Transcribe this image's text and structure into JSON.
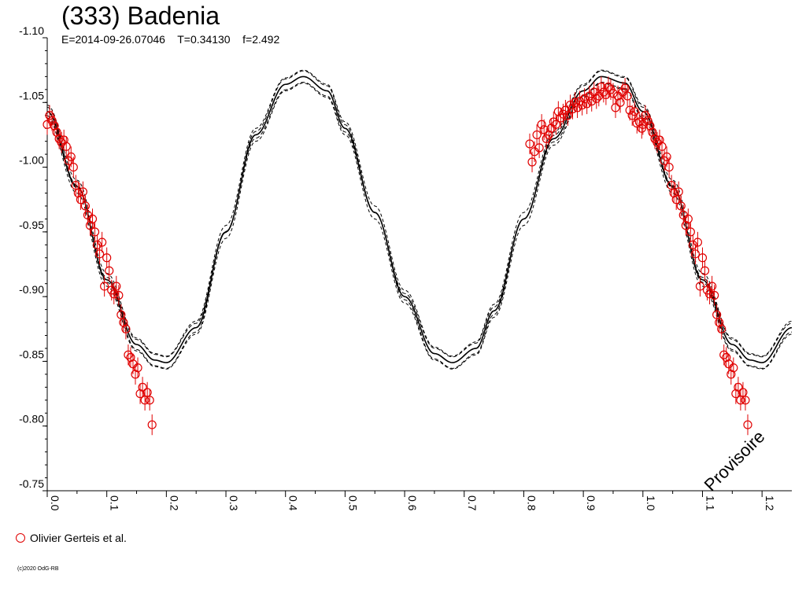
{
  "title": "(333) Badenia",
  "subtitle": "E=2014-09-26.07046    T=0.34130    f=2.492",
  "legend": {
    "label": "Olivier Gerteis et al.",
    "color": "#e00000"
  },
  "watermark": "Provisoire",
  "copyright": "(c)2020 OdG-RB",
  "chart_data": {
    "type": "scatter",
    "title": "(333) Badenia",
    "subtitle": "E=2014-09-26.07046    T=0.34130    f=2.492",
    "xlim": [
      0,
      1.25
    ],
    "ylim": [
      -1.1,
      -0.75
    ],
    "y_inverted": true,
    "x_ticks": [
      "0.0",
      "0.1",
      "0.2",
      "0.3",
      "0.4",
      "0.5",
      "0.6",
      "0.7",
      "0.8",
      "0.9",
      "1.0",
      "1.1",
      "1.2"
    ],
    "y_ticks": [
      "-1.10",
      "-1.05",
      "-1.00",
      "-0.95",
      "-0.90",
      "-0.85",
      "-0.80",
      "-0.75"
    ],
    "grid": false,
    "legend_position": "bottom-left",
    "fit_curve": {
      "description": "two-harmonic fit with dashed uncertainty envelope",
      "points": [
        [
          0.0,
          -1.043
        ],
        [
          0.05,
          -0.985
        ],
        [
          0.1,
          -0.913
        ],
        [
          0.15,
          -0.863
        ],
        [
          0.18,
          -0.851
        ],
        [
          0.2,
          -0.849
        ],
        [
          0.25,
          -0.876
        ],
        [
          0.3,
          -0.95
        ],
        [
          0.35,
          -1.025
        ],
        [
          0.4,
          -1.064
        ],
        [
          0.43,
          -1.07
        ],
        [
          0.47,
          -1.059
        ],
        [
          0.5,
          -1.03
        ],
        [
          0.55,
          -0.965
        ],
        [
          0.6,
          -0.9
        ],
        [
          0.65,
          -0.856
        ],
        [
          0.68,
          -0.849
        ],
        [
          0.72,
          -0.86
        ],
        [
          0.75,
          -0.889
        ],
        [
          0.8,
          -0.96
        ],
        [
          0.85,
          -1.022
        ],
        [
          0.9,
          -1.059
        ],
        [
          0.93,
          -1.07
        ],
        [
          0.97,
          -1.065
        ],
        [
          1.0,
          -1.043
        ],
        [
          1.05,
          -0.985
        ],
        [
          1.1,
          -0.913
        ],
        [
          1.15,
          -0.863
        ],
        [
          1.18,
          -0.851
        ],
        [
          1.2,
          -0.849
        ],
        [
          1.25,
          -0.876
        ]
      ],
      "envelope": 0.005
    },
    "series": [
      {
        "name": "Olivier Gerteis et al.",
        "color": "#e00000",
        "error": 0.008,
        "points": [
          [
            0.0,
            -1.033
          ],
          [
            0.004,
            -1.04
          ],
          [
            0.008,
            -1.036
          ],
          [
            0.012,
            -1.032
          ],
          [
            0.016,
            -1.027
          ],
          [
            0.02,
            -1.022
          ],
          [
            0.024,
            -1.019
          ],
          [
            0.028,
            -1.021
          ],
          [
            0.032,
            -1.016
          ],
          [
            0.036,
            -1.005
          ],
          [
            0.04,
            -1.008
          ],
          [
            0.044,
            -1.0
          ],
          [
            0.048,
            -0.986
          ],
          [
            0.052,
            -0.98
          ],
          [
            0.056,
            -0.975
          ],
          [
            0.06,
            -0.981
          ],
          [
            0.064,
            -0.97
          ],
          [
            0.068,
            -0.963
          ],
          [
            0.072,
            -0.955
          ],
          [
            0.076,
            -0.96
          ],
          [
            0.08,
            -0.95
          ],
          [
            0.084,
            -0.94
          ],
          [
            0.088,
            -0.933
          ],
          [
            0.092,
            -0.942
          ],
          [
            0.096,
            -0.908
          ],
          [
            0.1,
            -0.93
          ],
          [
            0.104,
            -0.92
          ],
          [
            0.108,
            -0.905
          ],
          [
            0.112,
            -0.902
          ],
          [
            0.116,
            -0.908
          ],
          [
            0.12,
            -0.901
          ],
          [
            0.124,
            -0.886
          ],
          [
            0.128,
            -0.88
          ],
          [
            0.132,
            -0.875
          ],
          [
            0.136,
            -0.855
          ],
          [
            0.14,
            -0.853
          ],
          [
            0.144,
            -0.848
          ],
          [
            0.148,
            -0.84
          ],
          [
            0.152,
            -0.845
          ],
          [
            0.156,
            -0.825
          ],
          [
            0.16,
            -0.83
          ],
          [
            0.164,
            -0.82
          ],
          [
            0.168,
            -0.826
          ],
          [
            0.172,
            -0.82
          ],
          [
            0.176,
            -0.801
          ],
          [
            0.81,
            -1.018
          ],
          [
            0.814,
            -1.004
          ],
          [
            0.818,
            -1.012
          ],
          [
            0.822,
            -1.025
          ],
          [
            0.826,
            -1.015
          ],
          [
            0.83,
            -1.033
          ],
          [
            0.834,
            -1.029
          ],
          [
            0.838,
            -1.022
          ],
          [
            0.842,
            -1.025
          ],
          [
            0.846,
            -1.03
          ],
          [
            0.85,
            -1.035
          ],
          [
            0.854,
            -1.033
          ],
          [
            0.858,
            -1.043
          ],
          [
            0.862,
            -1.038
          ],
          [
            0.866,
            -1.041
          ],
          [
            0.87,
            -1.044
          ],
          [
            0.874,
            -1.04
          ],
          [
            0.878,
            -1.048
          ],
          [
            0.882,
            -1.045
          ],
          [
            0.886,
            -1.05
          ],
          [
            0.89,
            -1.046
          ],
          [
            0.894,
            -1.051
          ],
          [
            0.898,
            -1.048
          ],
          [
            0.902,
            -1.053
          ],
          [
            0.906,
            -1.049
          ],
          [
            0.91,
            -1.055
          ],
          [
            0.914,
            -1.051
          ],
          [
            0.918,
            -1.058
          ],
          [
            0.922,
            -1.053
          ],
          [
            0.926,
            -1.055
          ],
          [
            0.93,
            -1.062
          ],
          [
            0.934,
            -1.058
          ],
          [
            0.938,
            -1.056
          ],
          [
            0.942,
            -1.062
          ],
          [
            0.946,
            -1.06
          ],
          [
            0.95,
            -1.057
          ],
          [
            0.954,
            -1.046
          ],
          [
            0.958,
            -1.055
          ],
          [
            0.962,
            -1.05
          ],
          [
            0.966,
            -1.058
          ],
          [
            0.97,
            -1.061
          ],
          [
            0.974,
            -1.055
          ],
          [
            0.978,
            -1.044
          ],
          [
            0.982,
            -1.04
          ],
          [
            0.986,
            -1.043
          ],
          [
            0.99,
            -1.034
          ],
          [
            0.994,
            -1.035
          ],
          [
            0.998,
            -1.03
          ],
          [
            1.0,
            -1.033
          ],
          [
            1.004,
            -1.04
          ],
          [
            1.008,
            -1.036
          ],
          [
            1.012,
            -1.032
          ],
          [
            1.016,
            -1.027
          ],
          [
            1.02,
            -1.022
          ],
          [
            1.024,
            -1.019
          ],
          [
            1.028,
            -1.021
          ],
          [
            1.032,
            -1.016
          ],
          [
            1.036,
            -1.005
          ],
          [
            1.04,
            -1.008
          ],
          [
            1.044,
            -1.0
          ],
          [
            1.048,
            -0.986
          ],
          [
            1.052,
            -0.98
          ],
          [
            1.056,
            -0.975
          ],
          [
            1.06,
            -0.981
          ],
          [
            1.064,
            -0.97
          ],
          [
            1.068,
            -0.963
          ],
          [
            1.072,
            -0.955
          ],
          [
            1.076,
            -0.96
          ],
          [
            1.08,
            -0.95
          ],
          [
            1.084,
            -0.94
          ],
          [
            1.088,
            -0.933
          ],
          [
            1.092,
            -0.942
          ],
          [
            1.096,
            -0.908
          ],
          [
            1.1,
            -0.93
          ],
          [
            1.104,
            -0.92
          ],
          [
            1.108,
            -0.905
          ],
          [
            1.112,
            -0.902
          ],
          [
            1.116,
            -0.908
          ],
          [
            1.12,
            -0.901
          ],
          [
            1.124,
            -0.886
          ],
          [
            1.128,
            -0.88
          ],
          [
            1.132,
            -0.875
          ],
          [
            1.136,
            -0.855
          ],
          [
            1.14,
            -0.853
          ],
          [
            1.144,
            -0.848
          ],
          [
            1.148,
            -0.84
          ],
          [
            1.152,
            -0.845
          ],
          [
            1.156,
            -0.825
          ],
          [
            1.16,
            -0.83
          ],
          [
            1.164,
            -0.82
          ],
          [
            1.168,
            -0.826
          ],
          [
            1.172,
            -0.82
          ],
          [
            1.176,
            -0.801
          ]
        ]
      }
    ]
  }
}
